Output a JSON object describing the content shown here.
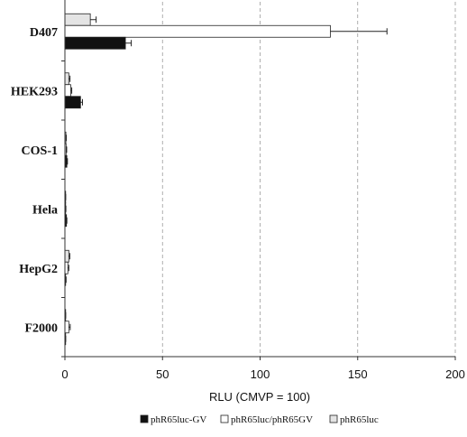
{
  "chart_data": {
    "type": "bar",
    "orientation": "horizontal",
    "categories": [
      "D407",
      "HEK293",
      "COS-1",
      "Hela",
      "HepG2",
      "F2000"
    ],
    "series": [
      {
        "name": "phR65luc-GV",
        "color": "#111111",
        "values": [
          31,
          8,
          1,
          0.8,
          0.3,
          0.2
        ],
        "errors": [
          3,
          1,
          0.3,
          0.2,
          0.3,
          0.2
        ]
      },
      {
        "name": "phR65luc/phR65GV",
        "color": "#ffffff",
        "values": [
          136,
          3,
          0.6,
          0.3,
          1.5,
          2
        ],
        "errors": [
          29,
          0.5,
          0.3,
          0.2,
          0.5,
          0.7
        ]
      },
      {
        "name": "phR65luc",
        "color": "#e4e4e4",
        "values": [
          13,
          2,
          0.5,
          0.2,
          2,
          0.3
        ],
        "errors": [
          3,
          0.6,
          0.2,
          0.2,
          0.5,
          0.1
        ]
      }
    ],
    "xlabel": "RLU (CMVP = 100)",
    "xlim": [
      0,
      200
    ],
    "xticks": [
      "0",
      "50",
      "100",
      "150",
      "200"
    ],
    "xtick_values": [
      0,
      50,
      100,
      150,
      200
    ],
    "grid": "vertical dashed",
    "legend_position": "bottom"
  }
}
